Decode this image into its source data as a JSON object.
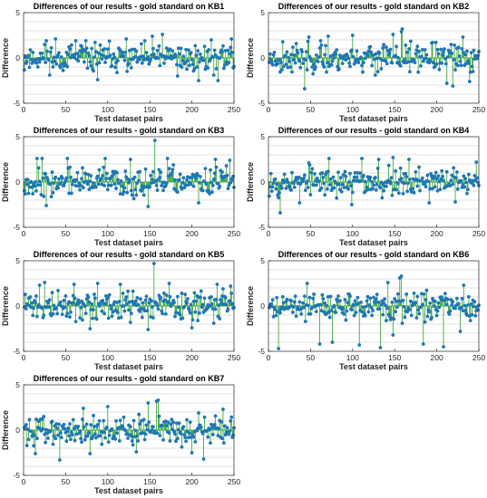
{
  "chart_data": [
    {
      "type": "scatter",
      "style": "stem",
      "title": "Differences of our results - gold standard on KB1",
      "xlabel": "Test dataset pairs",
      "ylabel": "Difference",
      "xlim": [
        0,
        250
      ],
      "ylim": [
        -5,
        5
      ],
      "xticks": [
        0,
        50,
        100,
        150,
        200,
        250
      ],
      "yticks": [
        -5,
        0,
        5
      ],
      "grid": "y-minor",
      "n_points": 250,
      "amplitude": 1.0,
      "outliers": [
        [
          27,
          1.9
        ],
        [
          38,
          2.1
        ],
        [
          62,
          1.9
        ],
        [
          88,
          -2.4
        ],
        [
          122,
          2.1
        ],
        [
          153,
          2.4
        ],
        [
          165,
          2.6
        ],
        [
          183,
          -2.0
        ],
        [
          208,
          -2.5
        ],
        [
          223,
          2.0
        ],
        [
          231,
          -2.5
        ],
        [
          247,
          2.1
        ]
      ],
      "seed": 11
    },
    {
      "type": "scatter",
      "style": "stem",
      "title": "Differences of our results - gold standard on KB2",
      "xlabel": "Test dataset pairs",
      "ylabel": "Difference",
      "xlim": [
        0,
        250
      ],
      "ylim": [
        -5,
        5
      ],
      "xticks": [
        0,
        50,
        100,
        150,
        200,
        250
      ],
      "yticks": [
        -5,
        0,
        5
      ],
      "grid": "y-minor",
      "n_points": 250,
      "amplitude": 1.0,
      "outliers": [
        [
          43,
          -3.4
        ],
        [
          48,
          2.3
        ],
        [
          71,
          2.4
        ],
        [
          100,
          2.5
        ],
        [
          148,
          2.6
        ],
        [
          158,
          2.9
        ],
        [
          159,
          3.2
        ],
        [
          212,
          -2.8
        ],
        [
          219,
          -3.1
        ],
        [
          231,
          2.3
        ],
        [
          239,
          -2.6
        ]
      ],
      "seed": 23
    },
    {
      "type": "scatter",
      "style": "stem",
      "title": "Differences of our results - gold standard on KB3",
      "xlabel": "Test dataset pairs",
      "ylabel": "Difference",
      "xlim": [
        0,
        250
      ],
      "ylim": [
        -5,
        5
      ],
      "xticks": [
        0,
        50,
        100,
        150,
        200,
        250
      ],
      "yticks": [
        -5,
        0,
        5
      ],
      "grid": "y-minor",
      "n_points": 250,
      "amplitude": 1.0,
      "outliers": [
        [
          16,
          2.6
        ],
        [
          22,
          2.6
        ],
        [
          27,
          -2.6
        ],
        [
          52,
          2.6
        ],
        [
          97,
          2.6
        ],
        [
          127,
          2.5
        ],
        [
          148,
          -2.7
        ],
        [
          156,
          4.6
        ],
        [
          171,
          2.6
        ],
        [
          208,
          -2.3
        ],
        [
          228,
          2.5
        ],
        [
          245,
          2.4
        ]
      ],
      "seed": 37
    },
    {
      "type": "scatter",
      "style": "stem",
      "title": "Differences of our results - gold standard on KB4",
      "xlabel": "Test dataset pairs",
      "ylabel": "Difference",
      "xlim": [
        0,
        250
      ],
      "ylim": [
        -5,
        5
      ],
      "xticks": [
        0,
        50,
        100,
        150,
        200,
        250
      ],
      "yticks": [
        -5,
        0,
        5
      ],
      "grid": "y-minor",
      "n_points": 250,
      "amplitude": 1.0,
      "outliers": [
        [
          14,
          -3.4
        ],
        [
          37,
          -2.3
        ],
        [
          48,
          2.1
        ],
        [
          72,
          2.6
        ],
        [
          99,
          -2.5
        ],
        [
          111,
          2.6
        ],
        [
          131,
          2.5
        ],
        [
          148,
          2.7
        ],
        [
          167,
          2.5
        ],
        [
          191,
          -2.3
        ],
        [
          222,
          -2.2
        ],
        [
          247,
          2.2
        ]
      ],
      "seed": 53
    },
    {
      "type": "scatter",
      "style": "stem",
      "title": "Differences of our results - gold standard on KB5",
      "xlabel": "Test dataset pairs",
      "ylabel": "Difference",
      "xlim": [
        0,
        250
      ],
      "ylim": [
        -5,
        5
      ],
      "xticks": [
        0,
        50,
        100,
        150,
        200,
        250
      ],
      "yticks": [
        -5,
        0,
        5
      ],
      "grid": "y-minor",
      "n_points": 250,
      "amplitude": 1.0,
      "outliers": [
        [
          19,
          2.3
        ],
        [
          25,
          2.6
        ],
        [
          60,
          2.4
        ],
        [
          79,
          -2.5
        ],
        [
          88,
          2.5
        ],
        [
          115,
          2.4
        ],
        [
          148,
          -2.6
        ],
        [
          155,
          4.7
        ],
        [
          173,
          2.5
        ],
        [
          200,
          -2.4
        ],
        [
          230,
          2.4
        ],
        [
          246,
          2.2
        ]
      ],
      "seed": 71
    },
    {
      "type": "scatter",
      "style": "stem",
      "title": "Differences of our results - gold standard on KB6",
      "xlabel": "Test dataset pairs",
      "ylabel": "Difference",
      "xlim": [
        0,
        250
      ],
      "ylim": [
        -5,
        5
      ],
      "xticks": [
        0,
        50,
        100,
        150,
        200,
        250
      ],
      "yticks": [
        -5,
        0,
        5
      ],
      "grid": "y-minor",
      "n_points": 250,
      "amplitude": 1.0,
      "outliers": [
        [
          12,
          -4.7
        ],
        [
          46,
          2.5
        ],
        [
          61,
          -4.2
        ],
        [
          76,
          -4.0
        ],
        [
          108,
          -4.3
        ],
        [
          133,
          -4.6
        ],
        [
          142,
          2.6
        ],
        [
          148,
          -3.2
        ],
        [
          156,
          3.1
        ],
        [
          158,
          3.3
        ],
        [
          184,
          -4.2
        ],
        [
          208,
          -4.5
        ],
        [
          228,
          -2.8
        ],
        [
          232,
          2.3
        ]
      ],
      "seed": 89
    },
    {
      "type": "scatter",
      "style": "stem",
      "title": "Differences of our results - gold standard on KB7",
      "xlabel": "Test dataset pairs",
      "ylabel": "Difference",
      "xlim": [
        0,
        250
      ],
      "ylim": [
        -5,
        5
      ],
      "xticks": [
        0,
        50,
        100,
        150,
        200,
        250
      ],
      "yticks": [
        -5,
        0,
        5
      ],
      "grid": "y-minor",
      "n_points": 250,
      "amplitude": 1.0,
      "outliers": [
        [
          14,
          -2.6
        ],
        [
          43,
          -3.3
        ],
        [
          71,
          2.4
        ],
        [
          79,
          -2.6
        ],
        [
          100,
          2.6
        ],
        [
          134,
          -2.4
        ],
        [
          148,
          3.0
        ],
        [
          158,
          3.2
        ],
        [
          160,
          3.3
        ],
        [
          200,
          -2.5
        ],
        [
          214,
          -3.2
        ],
        [
          237,
          2.3
        ]
      ],
      "seed": 101
    }
  ],
  "colors": {
    "marker": "#1f77b4",
    "stem": "#2ca02c",
    "grid": "#d9d9d9",
    "axis": "#262626"
  }
}
